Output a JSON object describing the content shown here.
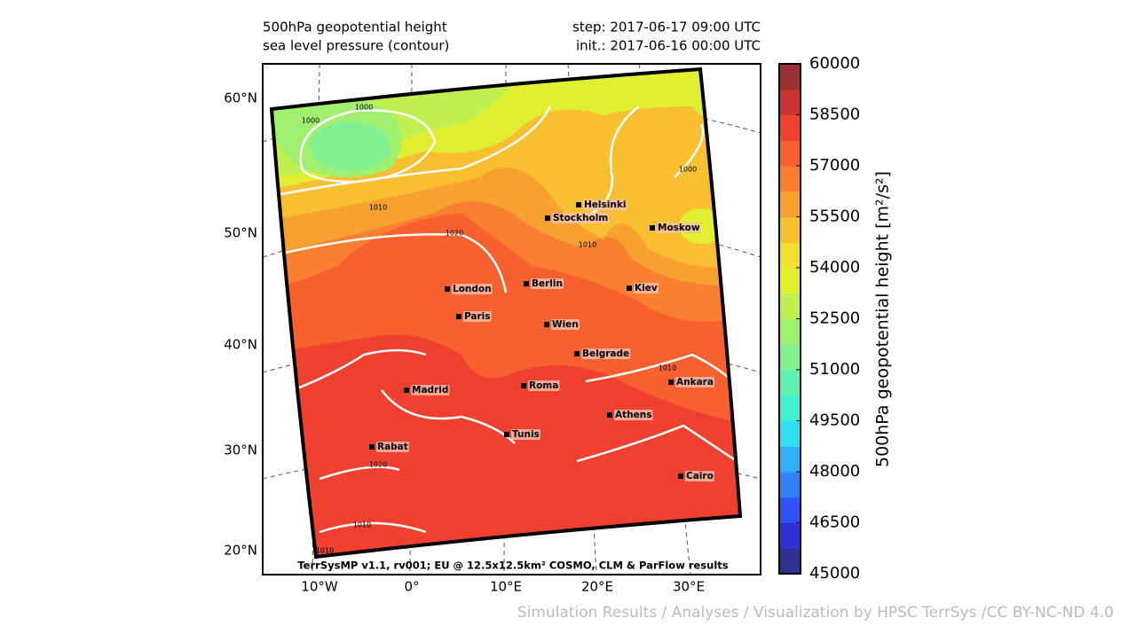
{
  "header": {
    "left": [
      "500hPa geopotential height",
      "sea level pressure (contour)"
    ],
    "right": [
      "step: 2017-06-17 09:00 UTC",
      "init.: 2017-06-16 00:00 UTC"
    ]
  },
  "map": {
    "lat_labels": [
      "60°N",
      "50°N",
      "40°N",
      "30°N",
      "20°N"
    ],
    "lon_labels": [
      "10°W",
      "0°",
      "10°E",
      "20°E",
      "30°E"
    ],
    "cities": [
      "Helsinki",
      "Stockholm",
      "Moskow",
      "Berlin",
      "London",
      "Kiev",
      "Paris",
      "Wien",
      "Belgrade",
      "Madrid",
      "Roma",
      "Ankara",
      "Athens",
      "Tunis",
      "Rabat",
      "Cairo"
    ],
    "contour_labels": [
      1000,
      1000,
      1000,
      1010,
      1020,
      1010,
      1010,
      1020,
      1010,
      1010
    ],
    "credit": "TerrSysMP v1.1, rv001; EU @ 12.5x12.5km² COSMO, CLM & ParFlow results"
  },
  "colorbar": {
    "label": "500hPa geopotential height [m²/s²]",
    "range": [
      45000,
      60000
    ],
    "ticks": [
      45000,
      46500,
      48000,
      49500,
      51000,
      52500,
      54000,
      55500,
      57000,
      58500,
      60000
    ],
    "colors": [
      "#303090",
      "#3030d8",
      "#3050f8",
      "#3080f8",
      "#30b0f8",
      "#30e0f0",
      "#40f0d0",
      "#60f0b0",
      "#80f090",
      "#a0f070",
      "#c0f050",
      "#e0f030",
      "#f0e030",
      "#f8c030",
      "#f8a030",
      "#f88030",
      "#f86030",
      "#f04030",
      "#cc3333",
      "#993333"
    ]
  },
  "footer": "Simulation Results / Analyses / Visualization by HPSC TerrSys /CC BY-NC-ND 4.0"
}
